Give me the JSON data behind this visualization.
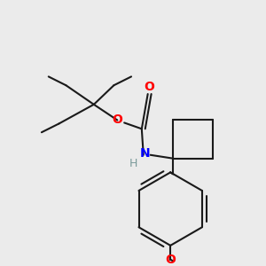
{
  "background_color": "#ebebeb",
  "bond_color": "#1a1a1a",
  "oxygen_color": "#ff0000",
  "nitrogen_color": "#0000ff",
  "hydrogen_color": "#7a9a9a",
  "line_width": 1.5,
  "figsize": [
    3.0,
    3.0
  ],
  "dpi": 100,
  "xlim": [
    0,
    300
  ],
  "ylim": [
    0,
    300
  ]
}
